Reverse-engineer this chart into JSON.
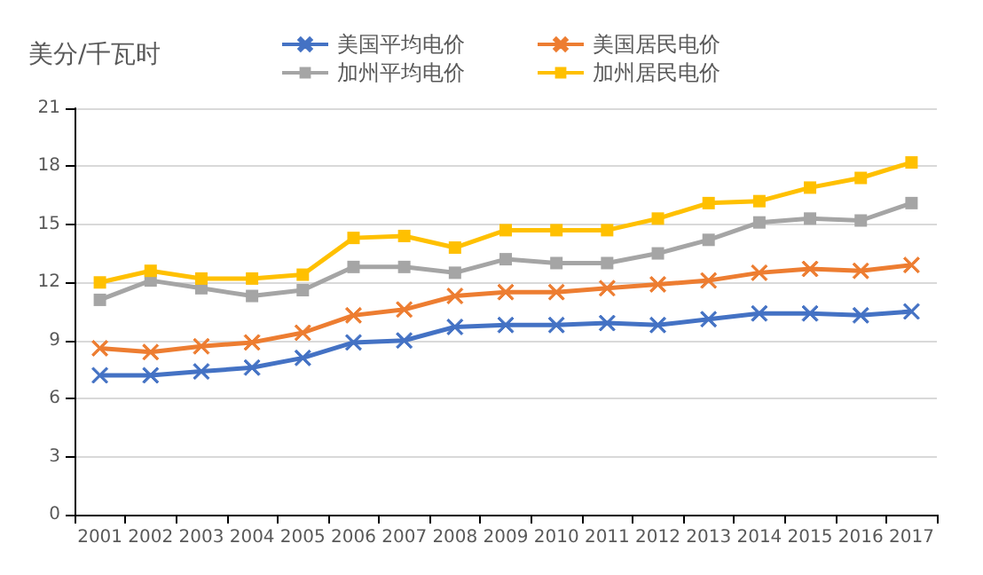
{
  "chart_data": {
    "type": "line",
    "ylabel": "美分/千瓦时",
    "categories": [
      "2001",
      "2002",
      "2003",
      "2004",
      "2005",
      "2006",
      "2007",
      "2008",
      "2009",
      "2010",
      "2011",
      "2012",
      "2013",
      "2014",
      "2015",
      "2016",
      "2017"
    ],
    "series": [
      {
        "name": "美国平均电价",
        "color": "#4472c4",
        "marker": "cross",
        "values": [
          7.2,
          7.2,
          7.4,
          7.6,
          8.1,
          8.9,
          9.0,
          9.7,
          9.8,
          9.8,
          9.9,
          9.8,
          10.1,
          10.4,
          10.4,
          10.3,
          10.5
        ]
      },
      {
        "name": "美国居民电价",
        "color": "#ed7d31",
        "marker": "cross",
        "values": [
          8.6,
          8.4,
          8.7,
          8.9,
          9.4,
          10.3,
          10.6,
          11.3,
          11.5,
          11.5,
          11.7,
          11.9,
          12.1,
          12.5,
          12.7,
          12.6,
          12.9
        ]
      },
      {
        "name": "加州平均电价",
        "color": "#a5a5a5",
        "marker": "square",
        "values": [
          11.1,
          12.1,
          11.7,
          11.3,
          11.6,
          12.8,
          12.8,
          12.5,
          13.2,
          13.0,
          13.0,
          13.5,
          14.2,
          15.1,
          15.3,
          15.2,
          16.1
        ]
      },
      {
        "name": "加州居民电价",
        "color": "#ffc000",
        "marker": "square",
        "values": [
          12.0,
          12.6,
          12.2,
          12.2,
          12.4,
          14.3,
          14.4,
          13.8,
          14.7,
          14.7,
          14.7,
          15.3,
          16.1,
          16.2,
          16.9,
          17.4,
          18.2
        ]
      }
    ],
    "ylim": [
      0,
      21
    ],
    "yticks": [
      0,
      3,
      6,
      9,
      12,
      15,
      18,
      21
    ],
    "grid": "y",
    "legend": "top",
    "line_style": "solid"
  }
}
